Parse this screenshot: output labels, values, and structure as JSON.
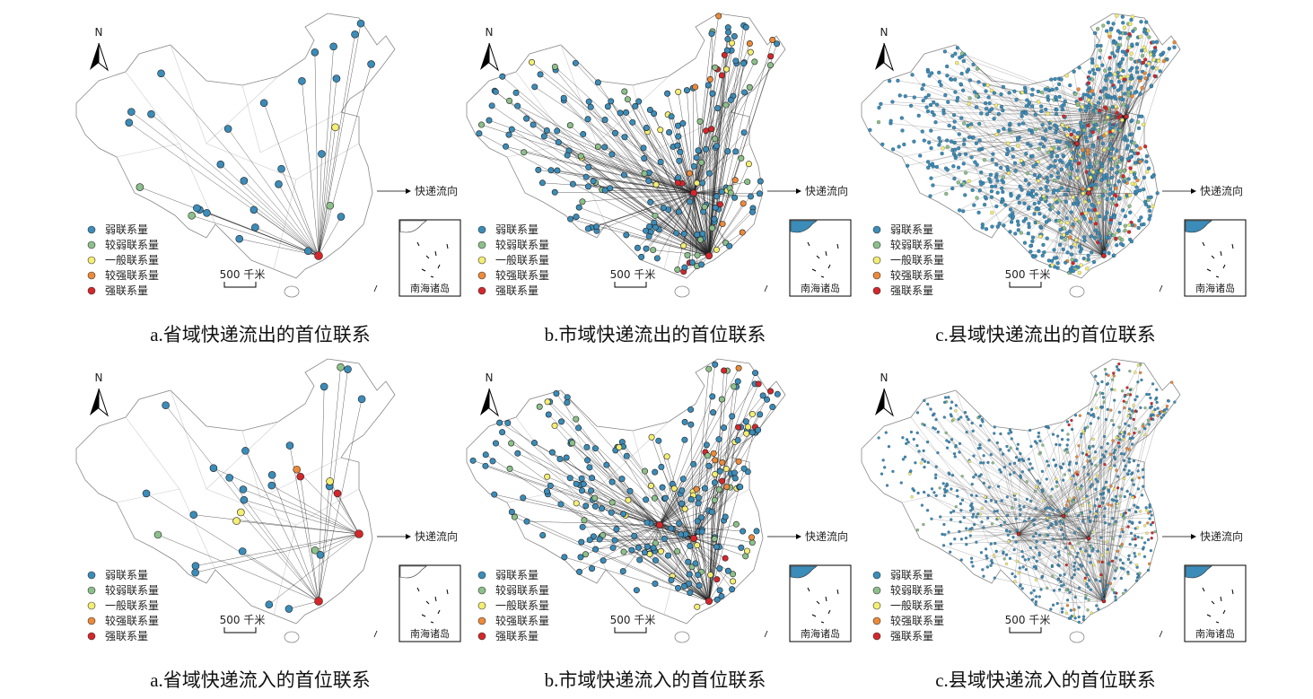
{
  "panels": [
    {
      "caption": "a.省域快递流出的首位联系",
      "north": "N",
      "legend": [
        {
          "label": "弱联系量",
          "color": "#3b8cb8"
        },
        {
          "label": "较弱联系量",
          "color": "#8cc08a"
        },
        {
          "label": "一般联系量",
          "color": "#f4ee72"
        },
        {
          "label": "较强联系量",
          "color": "#ec8a3a"
        },
        {
          "label": "强联系量",
          "color": "#d4272b"
        }
      ],
      "scale": "500 千米",
      "flow": "快递流向",
      "inset": "南海诸岛"
    },
    {
      "caption": "b.市域快递流出的首位联系",
      "north": "N",
      "legend": [
        {
          "label": "弱联系量",
          "color": "#3b8cb8"
        },
        {
          "label": "较弱联系量",
          "color": "#8cc08a"
        },
        {
          "label": "一般联系量",
          "color": "#f4ee72"
        },
        {
          "label": "较强联系量",
          "color": "#ec8a3a"
        },
        {
          "label": "强联系量",
          "color": "#d4272b"
        }
      ],
      "scale": "500 千米",
      "flow": "快递流向",
      "inset": "南海诸岛"
    },
    {
      "caption": "c.县域快递流出的首位联系",
      "north": "N",
      "legend": [
        {
          "label": "弱联系量",
          "color": "#3b8cb8"
        },
        {
          "label": "较弱联系量",
          "color": "#8cc08a"
        },
        {
          "label": "一般联系量",
          "color": "#f4ee72"
        },
        {
          "label": "较强联系量",
          "color": "#ec8a3a"
        },
        {
          "label": "强联系量",
          "color": "#d4272b"
        }
      ],
      "scale": "500 千米",
      "flow": "快递流向",
      "inset": "南海诸岛"
    },
    {
      "caption": "a.省域快递流入的首位联系",
      "north": "N",
      "legend": [
        {
          "label": "弱联系量",
          "color": "#3b8cb8"
        },
        {
          "label": "较弱联系量",
          "color": "#8cc08a"
        },
        {
          "label": "一般联系量",
          "color": "#f4ee72"
        },
        {
          "label": "较强联系量",
          "color": "#ec8a3a"
        },
        {
          "label": "强联系量",
          "color": "#d4272b"
        }
      ],
      "scale": "500 千米",
      "flow": "快递流向",
      "inset": "南海诸岛"
    },
    {
      "caption": "b.市域快递流入的首位联系",
      "north": "N",
      "legend": [
        {
          "label": "弱联系量",
          "color": "#3b8cb8"
        },
        {
          "label": "较弱联系量",
          "color": "#8cc08a"
        },
        {
          "label": "一般联系量",
          "color": "#f4ee72"
        },
        {
          "label": "较强联系量",
          "color": "#ec8a3a"
        },
        {
          "label": "强联系量",
          "color": "#d4272b"
        }
      ],
      "scale": "500 千米",
      "flow": "快递流向",
      "inset": "南海诸岛"
    },
    {
      "caption": "c.县域快递流入的首位联系",
      "north": "N",
      "legend": [
        {
          "label": "弱联系量",
          "color": "#3b8cb8"
        },
        {
          "label": "较弱联系量",
          "color": "#8cc08a"
        },
        {
          "label": "一般联系量",
          "color": "#f4ee72"
        },
        {
          "label": "较强联系量",
          "color": "#ec8a3a"
        },
        {
          "label": "强联系量",
          "color": "#d4272b"
        }
      ],
      "scale": "500 千米",
      "flow": "快递流向",
      "inset": "南海诸岛"
    }
  ]
}
